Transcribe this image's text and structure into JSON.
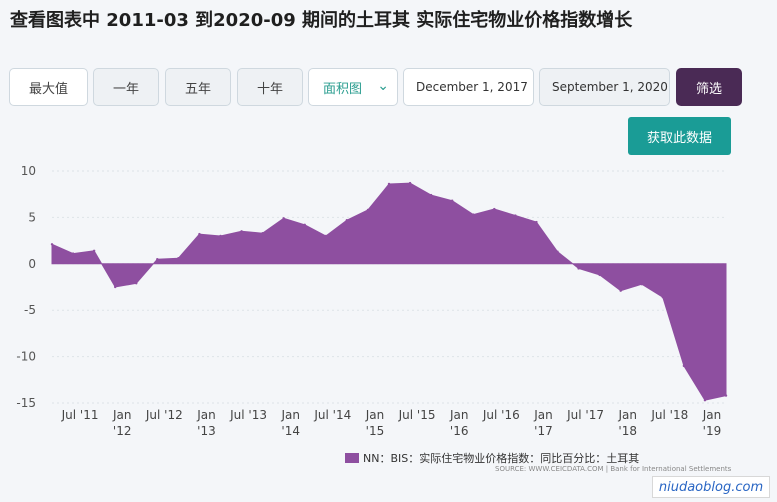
{
  "title": "查看图表中 2011-03 到2020-09 期间的土耳其 实际住宅物业价格指数增长",
  "toolbar": {
    "max_label": "最大值",
    "one_year": "一年",
    "five_year": "五年",
    "ten_year": "十年",
    "chart_type": "面积图",
    "start_date": "December 1, 2017",
    "end_date": "September 1, 2020",
    "filter_label": "筛选"
  },
  "get_data_label": "获取此数据",
  "legend_label": "NN：BIS：实际住宅物业价格指数：同比百分比：土耳其",
  "source_text": "SOURCE: WWW.CEICDATA.COM | Bank for International Settlements",
  "watermark": "niudaoblog.com",
  "colors": {
    "series": "#8e4fa0",
    "filter_button": "#4a2a55",
    "get_data_button": "#1a9c96"
  },
  "chart_data": {
    "type": "area",
    "x": [
      "2011-03",
      "2011-06",
      "2011-09",
      "2011-12",
      "2012-03",
      "2012-06",
      "2012-09",
      "2012-12",
      "2013-03",
      "2013-06",
      "2013-09",
      "2013-12",
      "2014-03",
      "2014-06",
      "2014-09",
      "2014-12",
      "2015-03",
      "2015-06",
      "2015-09",
      "2015-12",
      "2016-03",
      "2016-06",
      "2016-09",
      "2016-12",
      "2017-03",
      "2017-06",
      "2017-09",
      "2017-12",
      "2018-03",
      "2018-06",
      "2018-09",
      "2018-12",
      "2019-03"
    ],
    "series": [
      {
        "values": [
          2.1,
          1.1,
          1.4,
          -2.5,
          -2.1,
          0.5,
          0.6,
          3.2,
          3.0,
          3.5,
          3.3,
          4.9,
          4.2,
          3.0,
          4.7,
          5.8,
          8.6,
          8.7,
          7.4,
          6.8,
          5.3,
          5.9,
          5.2,
          4.5,
          1.3,
          -0.5,
          -1.2,
          -2.9,
          -2.2,
          -3.6,
          -11.0,
          -14.7,
          -14.2
        ]
      }
    ],
    "ylim": [
      -15,
      10
    ],
    "yticks": [
      10,
      5,
      0,
      -5,
      -10,
      -15
    ],
    "xticks": [
      {
        "date": "2011-07",
        "line1": "Jul '11",
        "line2": ""
      },
      {
        "date": "2012-01",
        "line1": "Jan",
        "line2": "'12"
      },
      {
        "date": "2012-07",
        "line1": "Jul '12",
        "line2": ""
      },
      {
        "date": "2013-01",
        "line1": "Jan",
        "line2": "'13"
      },
      {
        "date": "2013-07",
        "line1": "Jul '13",
        "line2": ""
      },
      {
        "date": "2014-01",
        "line1": "Jan",
        "line2": "'14"
      },
      {
        "date": "2014-07",
        "line1": "Jul '14",
        "line2": ""
      },
      {
        "date": "2015-01",
        "line1": "Jan",
        "line2": "'15"
      },
      {
        "date": "2015-07",
        "line1": "Jul '15",
        "line2": ""
      },
      {
        "date": "2016-01",
        "line1": "Jan",
        "line2": "'16"
      },
      {
        "date": "2016-07",
        "line1": "Jul '16",
        "line2": ""
      },
      {
        "date": "2017-01",
        "line1": "Jan",
        "line2": "'17"
      },
      {
        "date": "2017-07",
        "line1": "Jul '17",
        "line2": ""
      },
      {
        "date": "2018-01",
        "line1": "Jan",
        "line2": "'18"
      },
      {
        "date": "2018-07",
        "line1": "Jul '18",
        "line2": ""
      },
      {
        "date": "2019-01",
        "line1": "Jan",
        "line2": "'19"
      }
    ],
    "grid": true,
    "legend_position": "bottom"
  }
}
